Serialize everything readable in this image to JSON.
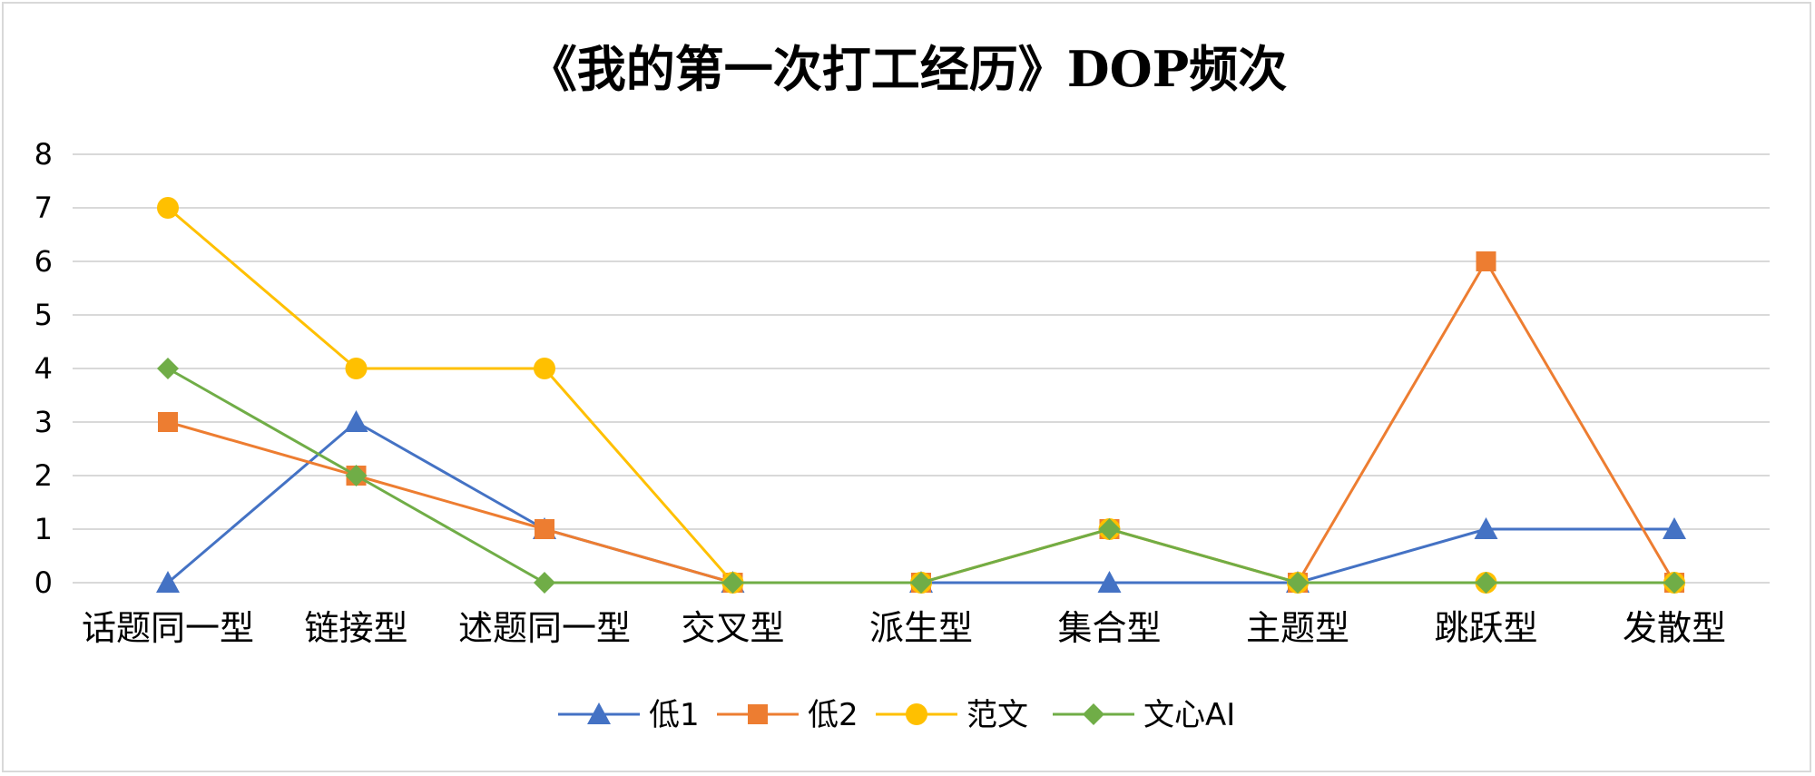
{
  "chart_data": {
    "type": "line",
    "title": "《我的第一次打工经历》DOP频次",
    "xlabel": "",
    "ylabel": "",
    "categories": [
      "话题同一型",
      "链接型",
      "述题同一型",
      "交叉型",
      "派生型",
      "集合型",
      "主题型",
      "跳跃型",
      "发散型"
    ],
    "ylim": [
      0,
      8
    ],
    "yticks": [
      0,
      1,
      2,
      3,
      4,
      5,
      6,
      7,
      8
    ],
    "grid": true,
    "legend_position": "bottom",
    "series": [
      {
        "name": "低1",
        "values": [
          0,
          3,
          1,
          0,
          0,
          0,
          0,
          1,
          1
        ],
        "color": "#4472C4",
        "marker": "triangle"
      },
      {
        "name": "低2",
        "values": [
          3,
          2,
          1,
          0,
          0,
          1,
          0,
          6,
          0
        ],
        "color": "#ED7D31",
        "marker": "square"
      },
      {
        "name": "范文",
        "values": [
          7,
          4,
          4,
          0,
          0,
          1,
          0,
          0,
          0
        ],
        "color": "#FFC000",
        "marker": "circle"
      },
      {
        "name": "文心AI",
        "values": [
          4,
          2,
          0,
          0,
          0,
          1,
          0,
          0,
          0
        ],
        "color": "#70AD47",
        "marker": "diamond"
      }
    ]
  }
}
